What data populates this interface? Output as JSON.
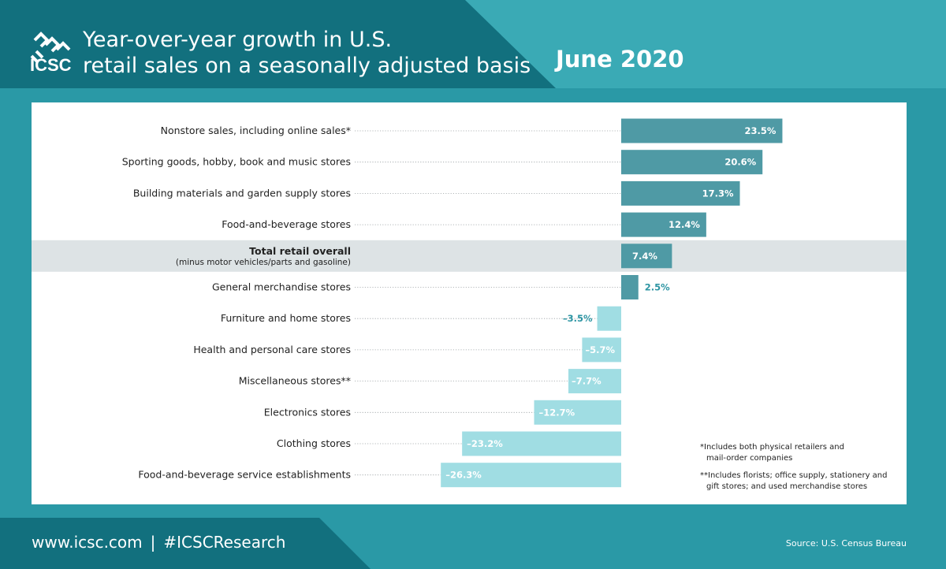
{
  "header": {
    "logo_text": "ICSC",
    "title_lines": [
      "Year-over-year growth in U.S.",
      "retail sales on a seasonally adjusted basis"
    ],
    "date": "June 2020"
  },
  "chart_data": {
    "type": "bar",
    "orientation": "horizontal",
    "categories": [
      "Nonstore sales, including online sales*",
      "Sporting goods, hobby, book and music stores",
      "Building materials and garden supply stores",
      "Food-and-beverage stores",
      "Total retail overall",
      "General merchandise stores",
      "Furniture and home stores",
      "Health and personal care stores",
      "Miscellaneous stores**",
      "Electronics stores",
      "Clothing stores",
      "Food-and-beverage service establishments"
    ],
    "values": [
      23.5,
      20.6,
      17.3,
      12.4,
      7.4,
      2.5,
      -3.5,
      -5.7,
      -7.7,
      -12.7,
      -23.2,
      -26.3
    ],
    "value_labels": [
      "23.5%",
      "20.6%",
      "17.3%",
      "12.4%",
      "7.4%",
      "2.5%",
      "–3.5%",
      "–5.7%",
      "–7.7%",
      "–12.7%",
      "–23.2%",
      "–26.3%"
    ],
    "highlight_index": 4,
    "highlight_sublabel": "(minus motor vehicles/parts and gasoline)",
    "xlim": [
      -30,
      30
    ],
    "colors": {
      "positive": "#4f9aa5",
      "negative": "#a0dde3",
      "highlight_band": "#dde3e5",
      "label_light": "#ffffff",
      "label_accent": "#2d95a3",
      "text": "#222222"
    },
    "footnotes": [
      [
        "*Includes both physical retailers and",
        "mail-order companies"
      ],
      [
        "**Includes florists; office supply, stationery and",
        "gift stores; and used merchandise stores"
      ]
    ]
  },
  "footer": {
    "website": "www.icsc.com",
    "separator": "|",
    "hashtag": "#ICSCResearch",
    "source": "Source: U.S. Census Bureau"
  }
}
